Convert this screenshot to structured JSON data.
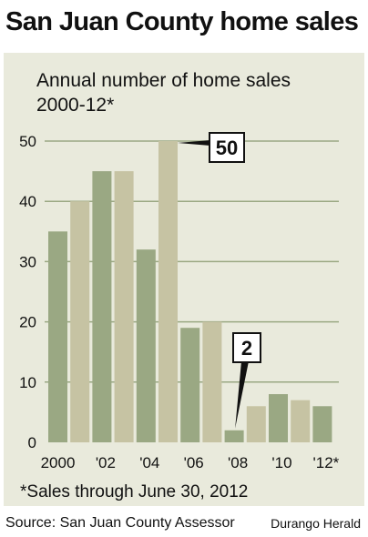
{
  "headline": "San Juan County home sales",
  "subtitle_line1": "Annual number of home sales",
  "subtitle_line2": "2000-12*",
  "footnote": "*Sales through June 30, 2012",
  "source": "Source: San Juan County Assessor",
  "credit": "Durango Herald",
  "colors": {
    "panel": "#e9eadc",
    "bar_dark": "#9aa883",
    "bar_light": "#c6c3a3",
    "grid": "#9aa883"
  },
  "chart_data": {
    "type": "bar",
    "categories": [
      "2000",
      "2001",
      "2002",
      "2003",
      "2004",
      "2005",
      "2006",
      "2007",
      "2008",
      "2009",
      "2010",
      "2011",
      "2012"
    ],
    "values": [
      35,
      40,
      45,
      45,
      32,
      50,
      19,
      20,
      2,
      6,
      8,
      7,
      6
    ],
    "tick_labels_x": [
      "2000",
      "'02",
      "'04",
      "'06",
      "'08",
      "'10",
      "'12*"
    ],
    "y_ticks": [
      0,
      10,
      20,
      30,
      40,
      50
    ],
    "ylim": [
      0,
      50
    ],
    "grid": true,
    "annotations": [
      {
        "category": "2005",
        "label": "50"
      },
      {
        "category": "2008",
        "label": "2"
      }
    ]
  }
}
